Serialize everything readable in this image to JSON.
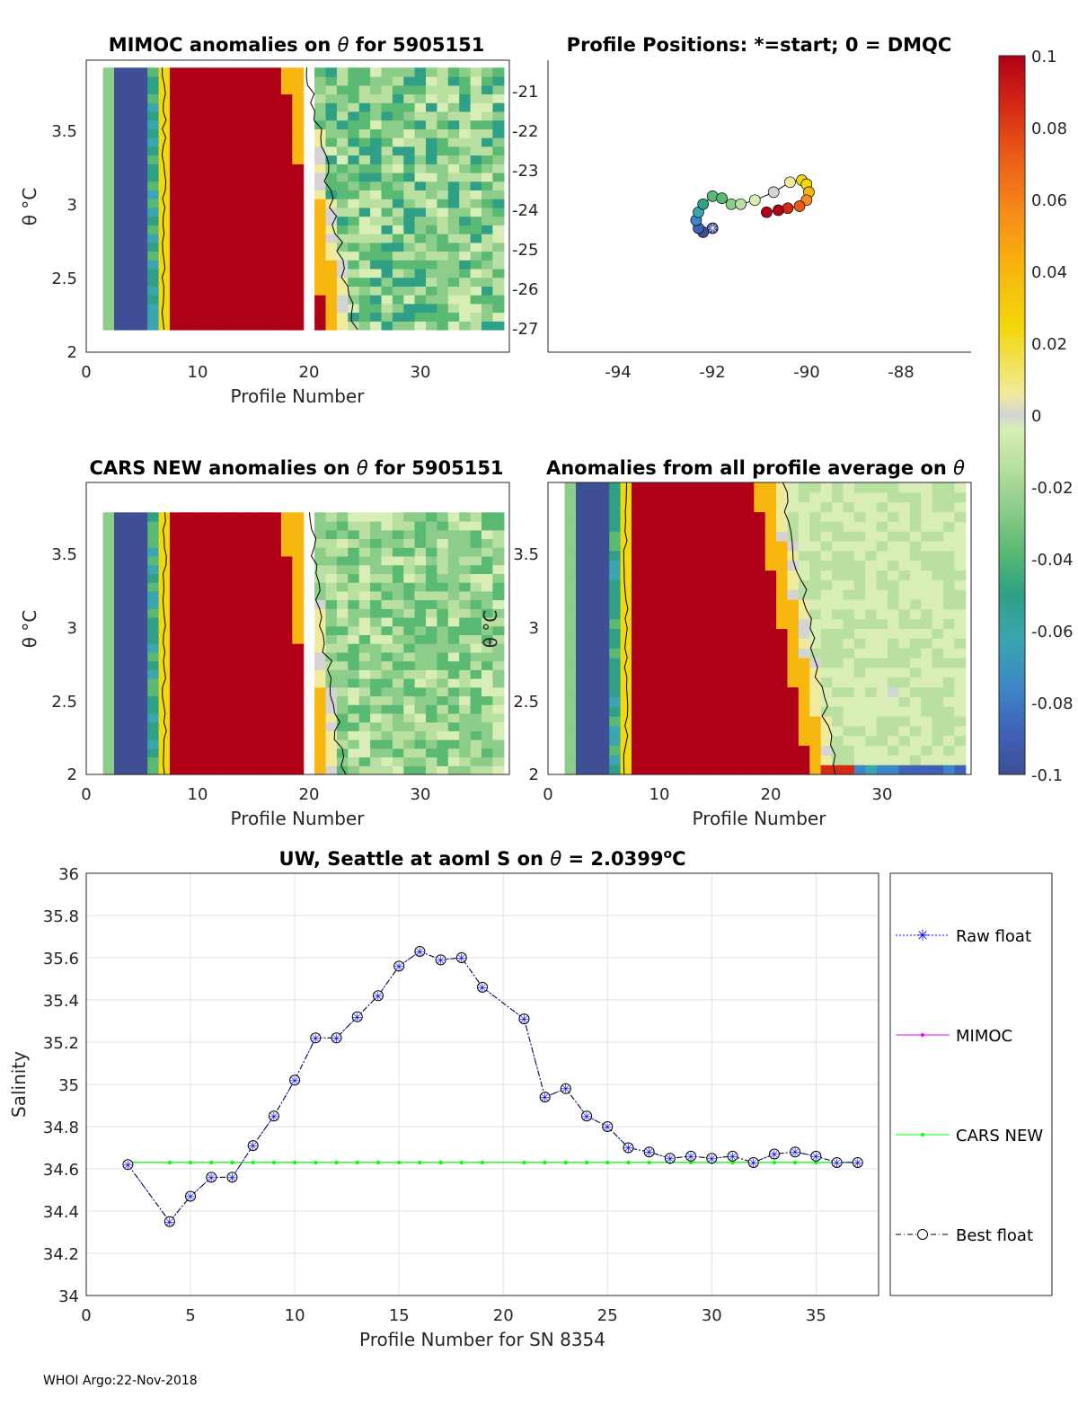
{
  "footer": "WHOI Argo:22-Nov-2018",
  "colormap": [
    "#3e4f96",
    "#3f62b7",
    "#3d86c6",
    "#3aa6b0",
    "#2fa086",
    "#5ab973",
    "#8ccd8a",
    "#b9e0a0",
    "#d8eeb6",
    "#d4d4d4",
    "#f0eb9c",
    "#f2d80c",
    "#f7b70e",
    "#f68d18",
    "#e95c18",
    "#d42a14",
    "#b00018"
  ],
  "colorbar": {
    "ticks": [
      "0.1",
      "0.08",
      "0.06",
      "0.04",
      "0.02",
      "0",
      "-0.02",
      "-0.04",
      "-0.06",
      "-0.08",
      "-0.1"
    ]
  },
  "panels": {
    "mimoc": {
      "title_pre": "MIMOC anomalies on ",
      "theta": "θ",
      "title_post": " for 5905151",
      "ylabel": "θ °C",
      "xlabel": "Profile Number",
      "yticks": [
        "3.5",
        "3",
        "2.5",
        "2"
      ],
      "xticks": [
        "0",
        "10",
        "20",
        "30"
      ],
      "right_ticks": [
        "-21",
        "-22",
        "-23",
        "-24",
        "-25",
        "-26",
        "-27"
      ]
    },
    "positions": {
      "title": "Profile Positions: *=start; 0 = DMQC",
      "xticks": [
        "-94",
        "-92",
        "-90",
        "-88"
      ]
    },
    "cars": {
      "title_pre": "CARS NEW anomalies on ",
      "theta": "θ",
      "title_post": " for 5905151",
      "ylabel": "θ °C",
      "xlabel": "Profile Number",
      "yticks": [
        "3.5",
        "3",
        "2.5",
        "2"
      ],
      "xticks": [
        "0",
        "10",
        "20",
        "30"
      ]
    },
    "allavg": {
      "title_pre": "Anomalies from all profile average on ",
      "theta": "θ",
      "ylabel": "θ °C",
      "xlabel": "Profile Number",
      "yticks": [
        "3.5",
        "3",
        "2.5",
        "2"
      ],
      "xticks": [
        "0",
        "10",
        "20",
        "30"
      ]
    }
  },
  "chart_data": [
    {
      "type": "heatmap",
      "title": "MIMOC anomalies on θ for 5905151",
      "xlabel": "Profile Number",
      "ylabel": "θ °C",
      "xlim": [
        0,
        38
      ],
      "ylim": [
        2,
        3.95
      ],
      "clim": [
        -0.1,
        0.1
      ]
    },
    {
      "type": "scatter",
      "title": "Profile Positions: *=start; 0 = DMQC",
      "xlim": [
        -95.5,
        -86.5
      ],
      "ylim": [
        -27.6,
        -20.3
      ],
      "lon": [
        -92.0,
        -92.2,
        -92.3,
        -92.35,
        -92.3,
        -92.2,
        -92.0,
        -91.8,
        -91.6,
        -91.4,
        -91.1,
        -90.7,
        -90.35,
        -90.1,
        -90.0,
        -89.95,
        -90.0,
        -90.15,
        -90.4,
        -90.6,
        -90.85
      ],
      "lat": [
        -24.5,
        -24.6,
        -24.5,
        -24.3,
        -24.1,
        -23.9,
        -23.7,
        -23.75,
        -23.9,
        -23.9,
        -23.8,
        -23.6,
        -23.35,
        -23.3,
        -23.4,
        -23.6,
        -23.8,
        -23.95,
        -24.0,
        -24.05,
        -24.1
      ]
    },
    {
      "type": "heatmap",
      "title": "CARS NEW anomalies on θ for 5905151",
      "xlabel": "Profile Number",
      "ylabel": "θ °C",
      "xlim": [
        0,
        38
      ],
      "ylim": [
        2,
        3.95
      ],
      "clim": [
        -0.1,
        0.1
      ]
    },
    {
      "type": "heatmap",
      "title": "Anomalies from all profile average on θ",
      "xlabel": "Profile Number",
      "ylabel": "θ °C",
      "xlim": [
        0,
        38
      ],
      "ylim": [
        2,
        3.95
      ],
      "clim": [
        -0.1,
        0.1
      ]
    },
    {
      "type": "line",
      "title_pre": "UW, Seattle at aoml S on ",
      "theta": "θ",
      "title_mid": " = 2.0399",
      "title_sup": "o",
      "title_post": "C",
      "xlabel": "Profile Number for SN 8354",
      "ylabel": "Salinity",
      "xlim": [
        0,
        38
      ],
      "ylim": [
        34,
        36
      ],
      "xticks": [
        0,
        5,
        10,
        15,
        20,
        25,
        30,
        35
      ],
      "yticks": [
        34,
        34.2,
        34.4,
        34.6,
        34.8,
        35,
        35.2,
        35.4,
        35.6,
        35.8,
        36
      ],
      "ytick_labels": [
        "34",
        "34.2",
        "34.4",
        "34.6",
        "34.8",
        "35",
        "35.2",
        "35.4",
        "35.6",
        "35.8",
        "36"
      ],
      "x": [
        2,
        4,
        5,
        6,
        7,
        8,
        9,
        10,
        11,
        12,
        13,
        14,
        15,
        16,
        17,
        18,
        19,
        21,
        22,
        23,
        24,
        25,
        26,
        27,
        28,
        29,
        30,
        31,
        32,
        33,
        34,
        35,
        36,
        37
      ],
      "series": [
        {
          "name": "Raw float",
          "color": "#0000ff",
          "values": [
            34.62,
            34.35,
            34.47,
            34.56,
            34.56,
            34.71,
            34.85,
            35.02,
            35.22,
            35.22,
            35.32,
            35.42,
            35.56,
            35.63,
            35.59,
            35.6,
            35.46,
            35.31,
            34.94,
            34.98,
            34.85,
            34.8,
            34.7,
            34.68,
            34.65,
            34.66,
            34.65,
            34.66,
            34.63,
            34.67,
            34.68,
            34.66,
            34.63,
            34.63
          ]
        },
        {
          "name": "MIMOC",
          "color": "#ff00ff",
          "values": [
            34.63,
            34.63,
            34.63,
            34.63,
            34.63,
            34.63,
            34.63,
            34.63,
            34.63,
            34.63,
            34.63,
            34.63,
            34.63,
            34.63,
            34.63,
            34.63,
            34.63,
            34.63,
            34.63,
            34.63,
            34.63,
            34.63,
            34.63,
            34.63,
            34.63,
            34.63,
            34.63,
            34.63,
            34.63,
            34.63,
            34.63,
            34.63,
            34.63,
            34.63
          ]
        },
        {
          "name": "CARS NEW",
          "color": "#00ff00",
          "values": [
            34.63,
            34.63,
            34.63,
            34.63,
            34.63,
            34.63,
            34.63,
            34.63,
            34.63,
            34.63,
            34.63,
            34.63,
            34.63,
            34.63,
            34.63,
            34.63,
            34.63,
            34.63,
            34.63,
            34.63,
            34.63,
            34.63,
            34.63,
            34.63,
            34.63,
            34.63,
            34.63,
            34.63,
            34.63,
            34.63,
            34.63,
            34.63,
            34.63,
            34.63
          ]
        },
        {
          "name": "Best float",
          "color": "#000000",
          "values": [
            34.62,
            34.35,
            34.47,
            34.56,
            34.56,
            34.71,
            34.85,
            35.02,
            35.22,
            35.22,
            35.32,
            35.42,
            35.56,
            35.63,
            35.59,
            35.6,
            35.46,
            35.31,
            34.94,
            34.98,
            34.85,
            34.8,
            34.7,
            34.68,
            34.65,
            34.66,
            34.65,
            34.66,
            34.63,
            34.67,
            34.68,
            34.66,
            34.63,
            34.63
          ]
        }
      ]
    }
  ]
}
